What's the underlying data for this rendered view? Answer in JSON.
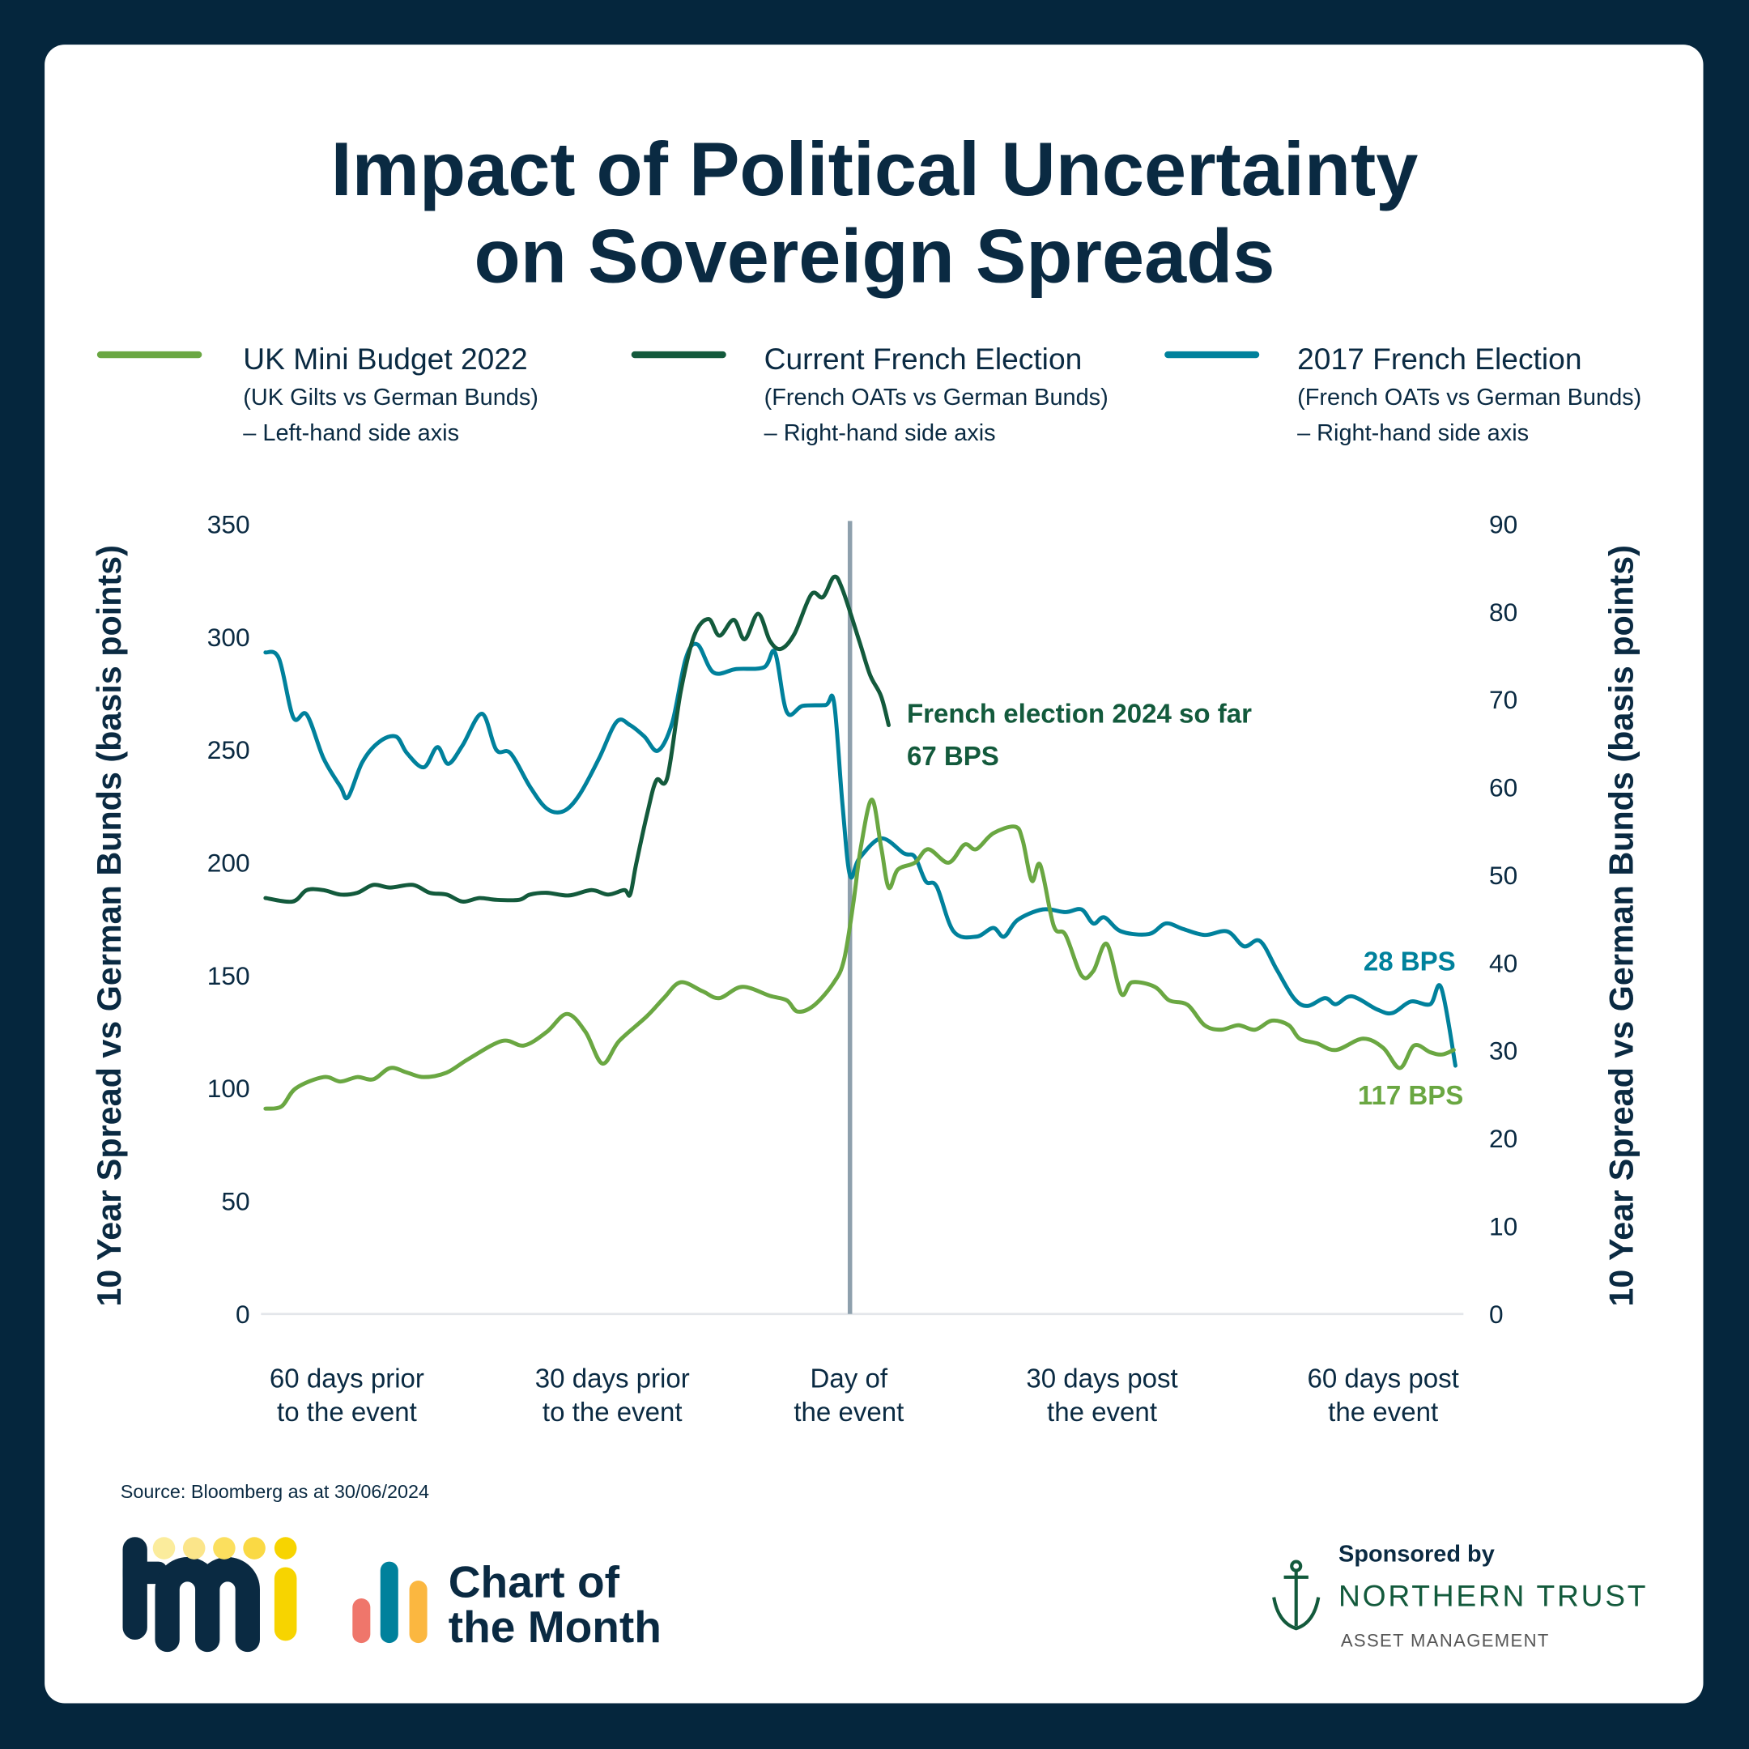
{
  "title_lines": [
    "Impact of Political Uncertainty",
    "on Sovereign Spreads"
  ],
  "colors": {
    "background": "#05263d",
    "uk": "#6aa742",
    "current_french": "#135a3c",
    "french_2017": "#00819c",
    "event_line": "#8ea0ad",
    "text": "#0a2a42"
  },
  "legend": [
    {
      "name": "UK Mini Budget 2022",
      "sub1": "(UK Gilts vs German Bunds)",
      "sub2": "– Left-hand side axis"
    },
    {
      "name": "Current French Election",
      "sub1": "(French OATs vs German Bunds)",
      "sub2": "– Right-hand side axis"
    },
    {
      "name": "2017 French Election",
      "sub1": "(French OATs vs German Bunds)",
      "sub2": "– Right-hand side axis"
    }
  ],
  "chart_data": {
    "type": "line",
    "ylabel_left": "10 Year Spread vs German Bunds (basis points)",
    "ylabel_right": "10 Year Spread vs German Bunds (basis points)",
    "ylim_left": [
      0,
      350
    ],
    "ylim_right": [
      0,
      90
    ],
    "yticks_left": [
      "0",
      "50",
      "100",
      "150",
      "200",
      "250",
      "300",
      "350"
    ],
    "yticks_right": [
      "0",
      "10",
      "20",
      "30",
      "40",
      "50",
      "60",
      "70",
      "80",
      "90"
    ],
    "x_unit": "days relative to event",
    "xticks": [
      {
        "x": -60,
        "line1": "60 days prior",
        "line2": "to the event"
      },
      {
        "x": -30,
        "line1": "30 days prior",
        "line2": "to the event"
      },
      {
        "x": 0,
        "line1": "Day of",
        "line2": "the event"
      },
      {
        "x": 30,
        "line1": "30 days post",
        "line2": "the event"
      },
      {
        "x": 63,
        "line1": "60 days post",
        "line2": "the event"
      }
    ],
    "event_marker_x": 0,
    "grid": false,
    "legend_placement": "top",
    "series": [
      {
        "name": "UK Mini Budget 2022",
        "axis": "left",
        "x": [
          -69.4,
          -67.5,
          -65.8,
          -62.5,
          -60.5,
          -58.5,
          -56.6,
          -54.6,
          -52.6,
          -50.6,
          -47.9,
          -45.3,
          -41.3,
          -38.7,
          -36.0,
          -33.6,
          -31.4,
          -29.4,
          -27.4,
          -24.1,
          -22.1,
          -20.1,
          -17.5,
          -15.5,
          -12.8,
          -9.5,
          -7.5,
          -6.2,
          -4.2,
          -1.9,
          -0.7,
          0.4,
          1.3,
          2.6,
          3.7,
          4.6,
          5.7,
          7.7,
          9.3,
          11.7,
          13.6,
          15.0,
          17.0,
          19.6,
          20.5,
          21.6,
          22.6,
          24.2,
          25.6,
          27.5,
          28.9,
          30.5,
          32.2,
          33.5,
          36.2,
          37.9,
          40.1,
          42.1,
          44.1,
          46.1,
          48.1,
          50.1,
          52.1,
          53.4,
          55.4,
          57.7,
          60.9,
          63.3,
          65.3,
          67.0,
          68.9,
          70.3,
          71.7
        ],
        "y": [
          91,
          92,
          100,
          105,
          103,
          105,
          104,
          109,
          107,
          105,
          107,
          113,
          121,
          119,
          125,
          133,
          125,
          111,
          121,
          132,
          140,
          147,
          143,
          140,
          145,
          141,
          139,
          134,
          137,
          147,
          157,
          182,
          207,
          228,
          207,
          189,
          197,
          200,
          206,
          200,
          208,
          206,
          213,
          216,
          210,
          192,
          199,
          172,
          168,
          150,
          152,
          164,
          142,
          147,
          145,
          139,
          137,
          128,
          126,
          128,
          126,
          130,
          128,
          122,
          120,
          117,
          122,
          118,
          109,
          119,
          116,
          115,
          117
        ]
      },
      {
        "name": "Current French Election",
        "axis": "right",
        "x": [
          -69.4,
          -66.2,
          -64.5,
          -62.5,
          -60.5,
          -58.5,
          -56.6,
          -54.6,
          -51.9,
          -49.9,
          -47.9,
          -46.0,
          -44.0,
          -42.0,
          -39.3,
          -38.0,
          -36.0,
          -33.4,
          -30.7,
          -28.7,
          -26.8,
          -26.1,
          -25.4,
          -24.1,
          -23.0,
          -21.7,
          -20.1,
          -18.5,
          -16.8,
          -15.5,
          -13.8,
          -12.5,
          -10.9,
          -9.5,
          -8.2,
          -6.6,
          -4.6,
          -3.2,
          -1.9,
          -0.9,
          1.1,
          2.4,
          3.7,
          4.6
        ],
        "y": [
          47.4,
          47.0,
          48.3,
          48.3,
          47.8,
          48.0,
          48.9,
          48.6,
          48.9,
          48.0,
          47.8,
          47.0,
          47.4,
          47.2,
          47.2,
          47.8,
          48.0,
          47.7,
          48.3,
          47.8,
          48.3,
          47.8,
          51.2,
          56.9,
          60.8,
          61.1,
          70.9,
          77.3,
          79.2,
          77.3,
          79.1,
          76.9,
          79.8,
          76.7,
          75.8,
          77.5,
          82.0,
          81.7,
          84.0,
          82.6,
          76.7,
          72.8,
          70.4,
          67.1
        ]
      },
      {
        "name": "2017 French Election",
        "axis": "right",
        "x": [
          -69.4,
          -67.8,
          -66.1,
          -64.5,
          -62.5,
          -60.5,
          -59.6,
          -57.9,
          -55.9,
          -53.9,
          -52.6,
          -50.6,
          -49.0,
          -47.7,
          -46.0,
          -43.7,
          -42.0,
          -40.3,
          -38.0,
          -36.0,
          -34.0,
          -32.1,
          -29.8,
          -27.7,
          -26.1,
          -24.4,
          -22.8,
          -21.1,
          -19.5,
          -18.1,
          -16.2,
          -13.5,
          -10.2,
          -8.9,
          -7.5,
          -5.6,
          -2.9,
          -1.9,
          -0.9,
          0,
          1.1,
          3.7,
          6.4,
          7.7,
          9.0,
          10.3,
          12.3,
          15.0,
          17.0,
          18.3,
          19.9,
          22.9,
          25.6,
          27.5,
          28.9,
          30.2,
          32.2,
          35.5,
          37.5,
          39.5,
          42.1,
          44.8,
          46.8,
          48.7,
          50.7,
          52.7,
          54.3,
          56.4,
          57.7,
          59.6,
          62.6,
          64.4,
          66.6,
          68.9,
          70.2,
          71.9
        ],
        "y": [
          75.4,
          74.7,
          68.0,
          68.3,
          63.3,
          60.1,
          58.9,
          62.9,
          65.2,
          65.8,
          63.9,
          62.3,
          64.6,
          62.7,
          64.8,
          68.4,
          64.3,
          63.9,
          60.1,
          57.6,
          57.3,
          59.2,
          63.3,
          67.5,
          67.1,
          65.8,
          64.2,
          67.4,
          74.7,
          76.3,
          73.1,
          73.5,
          73.7,
          75.4,
          68.6,
          69.3,
          69.4,
          69.7,
          58.2,
          50.0,
          51.9,
          54.2,
          52.5,
          52.1,
          49.3,
          48.7,
          43.6,
          43.0,
          44.0,
          43.0,
          44.9,
          46.1,
          45.8,
          46.1,
          44.5,
          45.2,
          43.6,
          43.3,
          44.5,
          43.9,
          43.2,
          43.6,
          41.9,
          42.5,
          39.2,
          36.0,
          35.1,
          36.0,
          35.3,
          36.2,
          34.7,
          34.3,
          35.6,
          35.3,
          37.2,
          28.3
        ]
      }
    ],
    "annotations": {
      "current_line1": "French election 2024 so far",
      "current_line2": "67 BPS",
      "french_2017": "28 BPS",
      "uk": "117 BPS"
    }
  },
  "footer": {
    "source": "Source: Bloomberg as at 30/06/2024",
    "brand": "tmi",
    "chart_of_month_line1": "Chart of",
    "chart_of_month_line2": "the Month",
    "sponsored_by": "Sponsored by",
    "sponsor_name": "NORTHERN TRUST",
    "sponsor_sub": "ASSET MANAGEMENT"
  }
}
